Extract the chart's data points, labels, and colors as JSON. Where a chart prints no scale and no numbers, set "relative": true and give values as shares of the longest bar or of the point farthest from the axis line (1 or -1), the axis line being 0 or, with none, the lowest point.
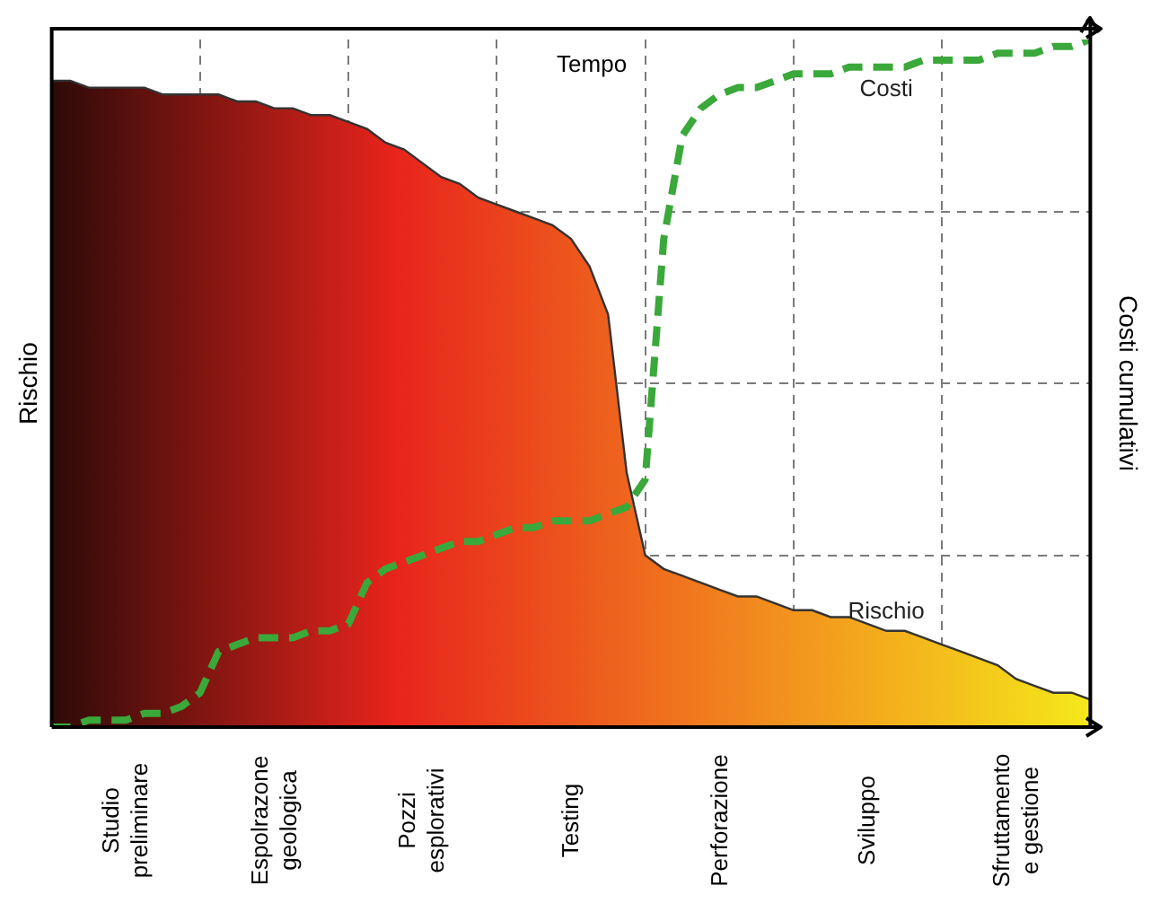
{
  "chart_data": {
    "type": "area",
    "relative": true,
    "xlabel": "Tempo",
    "ylabel": "Rischio",
    "y2label": "Costi cumulativi",
    "categories": [
      null,
      null,
      null,
      null,
      "Studio preliminare",
      null,
      null,
      null,
      null,
      null,
      null,
      null,
      "Espolrazone geologica",
      null,
      null,
      null,
      null,
      null,
      null,
      null,
      "Pozzi esplorativi",
      null,
      null,
      null,
      null,
      null,
      null,
      null,
      "Testing",
      null,
      null,
      null,
      null,
      null,
      null,
      null,
      "Perforazione",
      null,
      null,
      null,
      null,
      null,
      null,
      null,
      "Sviluppo",
      null,
      null,
      null,
      null,
      null,
      null,
      null,
      "Sfruttamento e gestione",
      null,
      null,
      null,
      null
    ],
    "series": [
      {
        "name": "Rischio",
        "type": "area",
        "color": "#333333",
        "values": [
          0.94,
          0.94,
          0.93,
          0.93,
          0.93,
          0.93,
          0.92,
          0.92,
          0.92,
          0.92,
          0.91,
          0.91,
          0.9,
          0.9,
          0.89,
          0.89,
          0.88,
          0.87,
          0.85,
          0.84,
          0.82,
          0.8,
          0.79,
          0.77,
          0.76,
          0.75,
          0.74,
          0.73,
          0.71,
          0.67,
          0.6,
          0.37,
          0.25,
          0.23,
          0.22,
          0.21,
          0.2,
          0.19,
          0.19,
          0.18,
          0.17,
          0.17,
          0.16,
          0.16,
          0.15,
          0.14,
          0.14,
          0.13,
          0.12,
          0.11,
          0.1,
          0.09,
          0.07,
          0.06,
          0.05,
          0.05,
          0.04
        ]
      },
      {
        "name": "Costi",
        "type": "line",
        "color": "#3aa83a",
        "line_style": "dashed",
        "values": [
          0,
          0,
          0.01,
          0.01,
          0.01,
          0.02,
          0.02,
          0.03,
          0.05,
          0.11,
          0.12,
          0.13,
          0.13,
          0.13,
          0.14,
          0.14,
          0.15,
          0.21,
          0.23,
          0.24,
          0.25,
          0.26,
          0.27,
          0.27,
          0.28,
          0.29,
          0.29,
          0.3,
          0.3,
          0.3,
          0.31,
          0.32,
          0.36,
          0.71,
          0.86,
          0.9,
          0.92,
          0.93,
          0.93,
          0.94,
          0.95,
          0.95,
          0.95,
          0.96,
          0.96,
          0.96,
          0.96,
          0.97,
          0.97,
          0.97,
          0.97,
          0.98,
          0.98,
          0.98,
          0.99,
          0.99,
          1
        ]
      }
    ],
    "grid": true,
    "legend": false,
    "tick_labels": "x",
    "marker": "none"
  }
}
